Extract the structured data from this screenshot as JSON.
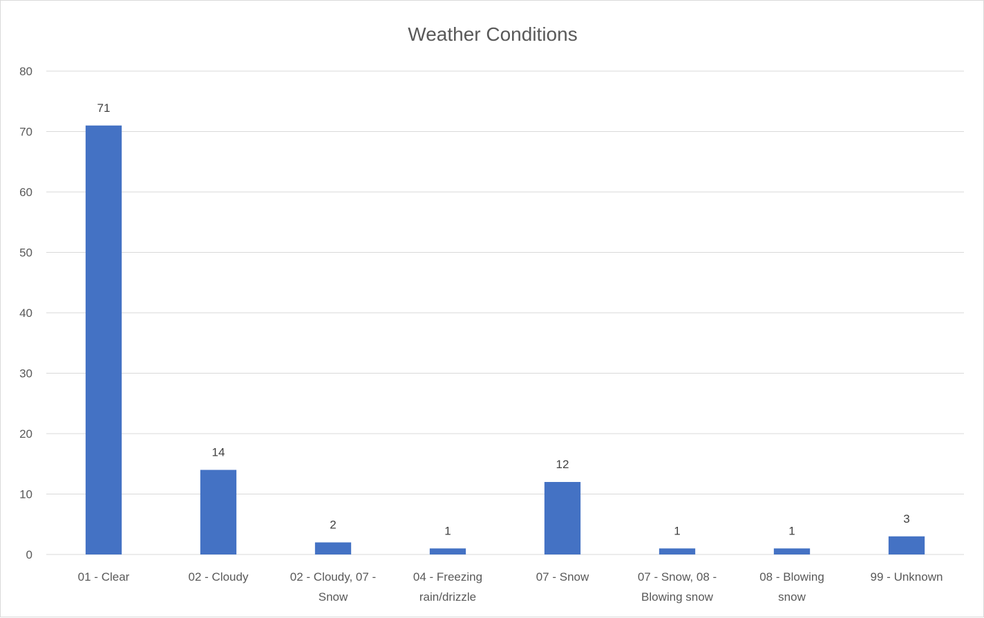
{
  "chart_data": {
    "type": "bar",
    "title": "Weather Conditions",
    "xlabel": "",
    "ylabel": "",
    "categories": [
      [
        "01 - Clear"
      ],
      [
        "02 - Cloudy"
      ],
      [
        "02 - Cloudy, 07 -",
        "Snow"
      ],
      [
        "04 - Freezing",
        "rain/drizzle"
      ],
      [
        "07 - Snow"
      ],
      [
        "07 - Snow, 08 -",
        "Blowing snow"
      ],
      [
        "08 - Blowing",
        "snow"
      ],
      [
        "99 - Unknown"
      ]
    ],
    "values": [
      71,
      14,
      2,
      1,
      12,
      1,
      1,
      3
    ],
    "ylim": [
      0,
      80
    ],
    "yticks": [
      0,
      10,
      20,
      30,
      40,
      50,
      60,
      70,
      80
    ],
    "grid": true,
    "legend": "none",
    "bar_color": "#4472C4",
    "data_labels": true
  }
}
